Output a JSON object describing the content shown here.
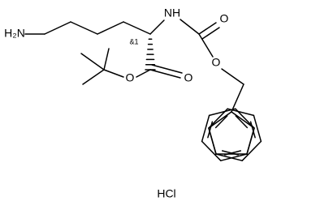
{
  "labels": {
    "amine": "H₂N",
    "stereo": "&1",
    "carbamate_n": "NH",
    "carbamate_o_single": "O",
    "carbamate_o_double": "O",
    "ester_o_single": "O",
    "ester_o_double": "O"
  },
  "salt": "HCl"
}
